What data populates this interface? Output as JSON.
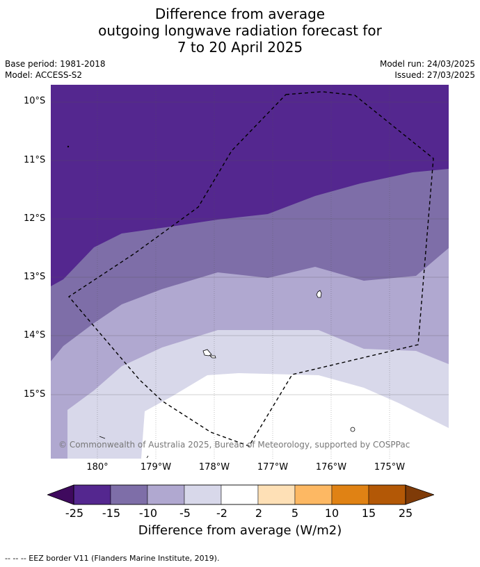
{
  "title": {
    "line1": "Difference from average",
    "line2": "outgoing longwave radiation forecast for",
    "line3": "7 to 20 April 2025"
  },
  "meta": {
    "base_period": "Base period: 1981-2018",
    "model": "Model: ACCESS-S2",
    "model_run": "Model run: 24/03/2025",
    "issued": "Issued: 27/03/2025"
  },
  "map": {
    "copyright": "© Commonwealth of Australia 2025, Bureau of Meteorology, supported by COSPPac",
    "lat_labels": [
      "10°S",
      "11°S",
      "12°S",
      "13°S",
      "14°S",
      "15°S"
    ],
    "lon_labels": [
      "180°",
      "179°W",
      "178°W",
      "177°W",
      "176°W",
      "175°W"
    ],
    "colors": {
      "c_le_-15": "#54278f",
      "c_-15_-10": "#7e6ea8",
      "c_-10_-5": "#b0a8d0",
      "c_-5_-2": "#d8d8ea",
      "c_-2_2": "#ffffff"
    }
  },
  "colorbar": {
    "labels": [
      "-25",
      "-15",
      "-10",
      "-5",
      "-2",
      "2",
      "5",
      "10",
      "15",
      "25"
    ],
    "colors": [
      "#3f0a5e",
      "#54278f",
      "#7e6ea8",
      "#b0a8d0",
      "#d8d8ea",
      "#ffffff",
      "#fee0b6",
      "#fdb863",
      "#e08214",
      "#b35806",
      "#7f3b08"
    ],
    "title": "Difference from average (W/m2)"
  },
  "footer": "--  --  -- EEZ border V11 (Flanders Marine Institute, 2019)."
}
